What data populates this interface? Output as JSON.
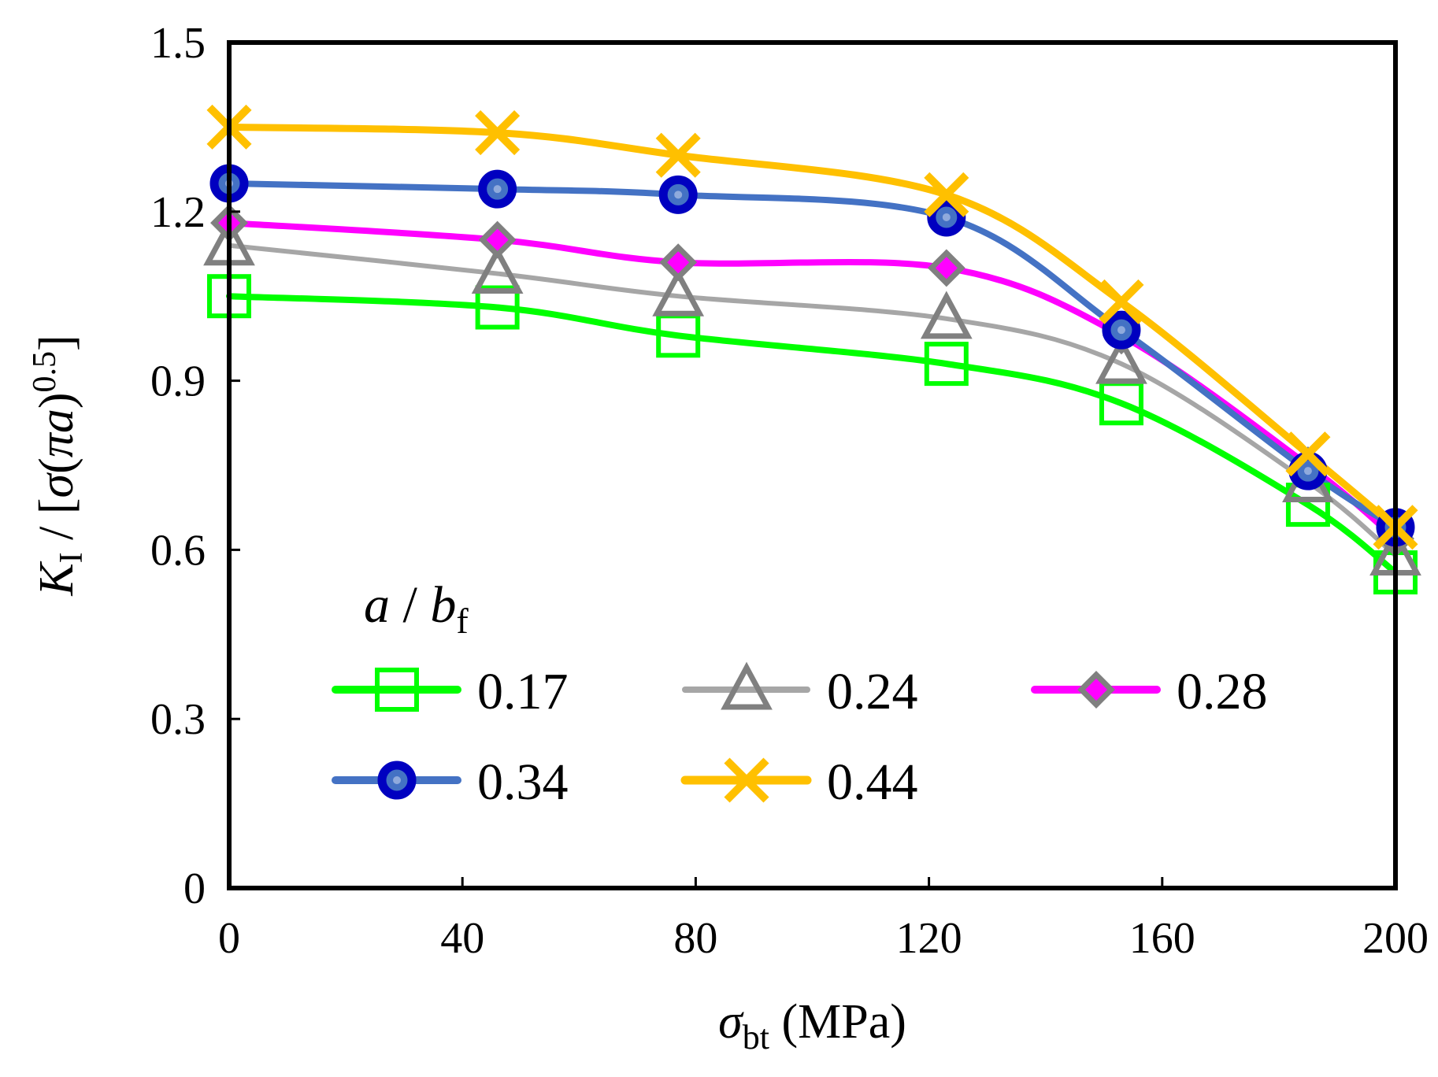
{
  "chart_data": {
    "type": "line",
    "title": "",
    "xlabel": {
      "symbol": "σ",
      "subscript": "bt",
      "unit": " (MPa)"
    },
    "ylabel": {
      "k": "K",
      "k_sub": "I",
      "slash": " / [",
      "sigma": "σ",
      "paren_open": "(",
      "pi_a": "πa",
      "paren_close": ")",
      "exponent": "0.5",
      "bracket_close": "]"
    },
    "xlim": [
      0,
      200
    ],
    "ylim": [
      0,
      1.5
    ],
    "x_ticks": [
      0,
      40,
      80,
      120,
      160,
      200
    ],
    "x_tick_labels": [
      "0",
      "40",
      "80",
      "120",
      "160",
      "200"
    ],
    "y_ticks": [
      0,
      0.3,
      0.6,
      0.9,
      1.2,
      1.5
    ],
    "y_tick_labels": [
      "0",
      "0.3",
      "0.6",
      "0.9",
      "1.2",
      "1.5"
    ],
    "grid": false,
    "legend": {
      "title_main": "a",
      "title_sep": " / ",
      "title_b": "b",
      "title_sub": "f",
      "placement": "bottom-left"
    },
    "series": [
      {
        "name": "0.17",
        "line_color": "#00ff00",
        "marker": "square",
        "marker_stroke": "#00ff00",
        "marker_fill": "none",
        "x": [
          0,
          46,
          77,
          123,
          153,
          185,
          200
        ],
        "y": [
          1.05,
          1.03,
          0.98,
          0.93,
          0.86,
          0.68,
          0.56
        ]
      },
      {
        "name": "0.24",
        "line_color": "#a6a6a6",
        "marker": "triangle",
        "marker_stroke": "#808080",
        "marker_fill": "none",
        "x": [
          0,
          46,
          77,
          123,
          153,
          185,
          200
        ],
        "y": [
          1.14,
          1.09,
          1.05,
          1.01,
          0.93,
          0.72,
          0.59
        ]
      },
      {
        "name": "0.28",
        "line_color": "#ff00ff",
        "marker": "diamond",
        "marker_stroke": "#808080",
        "marker_fill": "#ff00ff",
        "x": [
          0,
          46,
          77,
          123,
          153,
          185,
          200
        ],
        "y": [
          1.18,
          1.15,
          1.11,
          1.1,
          0.98,
          0.75,
          0.62
        ]
      },
      {
        "name": "0.34",
        "line_color": "#4472c4",
        "marker": "circle",
        "marker_stroke": "#0000c0",
        "marker_fill": "#4472c4",
        "x": [
          0,
          46,
          77,
          123,
          153,
          185,
          200
        ],
        "y": [
          1.25,
          1.24,
          1.23,
          1.19,
          0.99,
          0.74,
          0.64
        ]
      },
      {
        "name": "0.44",
        "line_color": "#ffc000",
        "marker": "x",
        "marker_stroke": "#ffc000",
        "marker_fill": "none",
        "x": [
          0,
          46,
          77,
          123,
          153,
          185,
          200
        ],
        "y": [
          1.35,
          1.34,
          1.3,
          1.23,
          1.04,
          0.77,
          0.64
        ]
      }
    ]
  }
}
